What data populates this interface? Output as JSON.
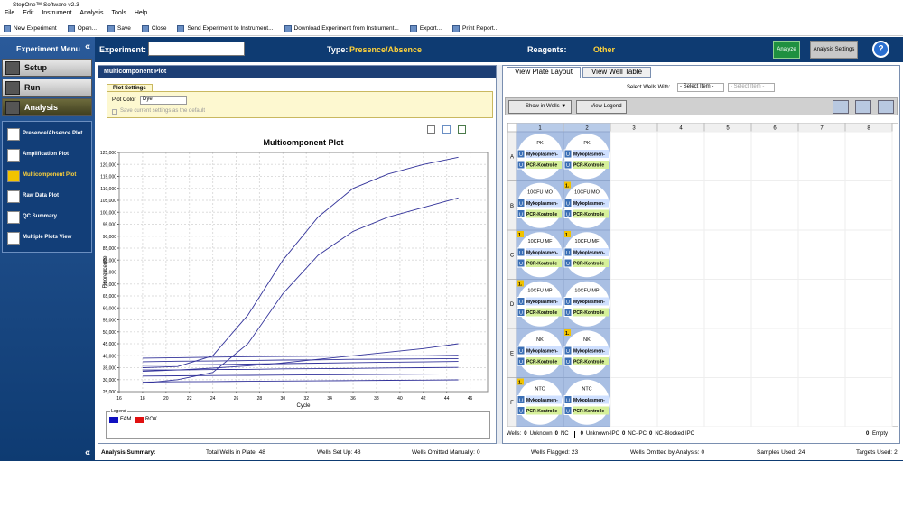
{
  "window": {
    "title": "StepOne™ Software v2.3"
  },
  "menu": [
    "File",
    "Edit",
    "Instrument",
    "Analysis",
    "Tools",
    "Help"
  ],
  "toolbar": [
    "New Experiment",
    "Open...",
    "Save",
    "Close",
    "Send Experiment to Instrument...",
    "Download Experiment from Instrument...",
    "Export...",
    "Print Report..."
  ],
  "header": {
    "experiment_label": "Experiment:",
    "type_label": "Type:",
    "type_value": "Presence/Absence",
    "reagents_label": "Reagents:",
    "reagents_value": "Other",
    "analyze": "Analyze",
    "analysis_settings": "Analysis Settings",
    "help": "?"
  },
  "sidebar": {
    "title": "Experiment Menu",
    "sections": [
      "Setup",
      "Run",
      "Analysis"
    ],
    "items": [
      "Presence/Absence Plot",
      "Amplification Plot",
      "Multicomponent Plot",
      "Raw Data Plot",
      "QC Summary",
      "Multiple Plots View"
    ],
    "active_item": 2
  },
  "plot_panel": {
    "title": "Multicomponent Plot",
    "settings_tab": "Plot Settings",
    "plot_color_label": "Plot Color",
    "plot_color_value": "Dye",
    "save_default": "Save current settings as the default",
    "legend_title": "Legend"
  },
  "chart_data": {
    "type": "line",
    "title": "Multicomponent Plot",
    "x_label": "Cycle",
    "y_label": "Fluorescence",
    "x": [
      18,
      21,
      24,
      27,
      30,
      33,
      36,
      39,
      42,
      45
    ],
    "series": [
      {
        "color": "#33339a",
        "values": [
          35000,
          35500,
          40000,
          57000,
          80000,
          98000,
          110000,
          116000,
          120000,
          123000
        ]
      },
      {
        "color": "#33339a",
        "values": [
          28500,
          30000,
          33000,
          45000,
          66000,
          82000,
          92000,
          98000,
          102000,
          106000
        ]
      },
      {
        "color": "#33339a",
        "values": [
          39000,
          39200,
          39400,
          39600,
          39700,
          39800,
          39900,
          40000,
          40000,
          40200
        ]
      },
      {
        "color": "#33339a",
        "values": [
          37500,
          37700,
          37800,
          38000,
          38200,
          38300,
          38500,
          38600,
          38700,
          38800
        ]
      },
      {
        "color": "#33339a",
        "values": [
          36000,
          36100,
          36300,
          36500,
          36700,
          36900,
          37100,
          37300,
          37400,
          37600
        ]
      },
      {
        "color": "#33339a",
        "values": [
          33500,
          34000,
          34800,
          35800,
          37000,
          38500,
          40000,
          41500,
          43000,
          45000
        ]
      },
      {
        "color": "#33339a",
        "values": [
          34000,
          34000,
          34200,
          34300,
          34500,
          34600,
          34700,
          34900,
          35000,
          35100
        ]
      },
      {
        "color": "#33339a",
        "values": [
          31500,
          31600,
          31700,
          31800,
          31900,
          32000,
          32100,
          32200,
          32300,
          32400
        ]
      },
      {
        "color": "#33339a",
        "values": [
          29000,
          29100,
          29200,
          29300,
          29400,
          29500,
          29600,
          29700,
          29800,
          29900
        ]
      }
    ],
    "xlim": [
      16,
      47.5
    ],
    "xticks": [
      16,
      18,
      20,
      22,
      24,
      26,
      28,
      30,
      32,
      34,
      36,
      38,
      40,
      42,
      44,
      46
    ],
    "ylim": [
      25000,
      125000
    ],
    "yticks": [
      {
        "value": 25000,
        "label": "25,000"
      },
      {
        "value": 30000,
        "label": "30,000"
      },
      {
        "value": 35000,
        "label": "35,000"
      },
      {
        "value": 40000,
        "label": "40,000"
      },
      {
        "value": 45000,
        "label": "45,000"
      },
      {
        "value": 50000,
        "label": "50,000"
      },
      {
        "value": 55000,
        "label": "55,000"
      },
      {
        "value": 60000,
        "label": "60,000"
      },
      {
        "value": 65000,
        "label": "65,000"
      },
      {
        "value": 70000,
        "label": "70,000"
      },
      {
        "value": 75000,
        "label": "75,000"
      },
      {
        "value": 80000,
        "label": "80,000"
      },
      {
        "value": 85000,
        "label": "85,000"
      },
      {
        "value": 90000,
        "label": "90,000"
      },
      {
        "value": 95000,
        "label": "95,000"
      },
      {
        "value": 100000,
        "label": "100,000"
      },
      {
        "value": 105000,
        "label": "105,000"
      },
      {
        "value": 110000,
        "label": "110,000"
      },
      {
        "value": 115000,
        "label": "115,000"
      },
      {
        "value": 120000,
        "label": "120,000"
      },
      {
        "value": 125000,
        "label": "125,000"
      }
    ],
    "grid": true,
    "legend_position": "bottom",
    "legend": [
      {
        "name": "FAM",
        "color": "#1010c0"
      },
      {
        "name": "ROX",
        "color": "#e01010"
      }
    ]
  },
  "plate_panel": {
    "tabs": [
      "View Plate Layout",
      "View Well Table"
    ],
    "select_label": "Select Wells With:",
    "select_items": [
      "- Select Item -",
      "- Select Item -"
    ],
    "show_in_wells": "Show in Wells ▼",
    "view_legend": "View Legend",
    "columns": [
      1,
      2,
      3,
      4,
      5,
      6,
      7,
      8
    ],
    "rows": [
      "A",
      "B",
      "C",
      "D",
      "E",
      "F"
    ],
    "task_icon": "U",
    "targets": [
      "Mykoplasmen-",
      "PCR-Kontrolle"
    ],
    "wells": [
      [
        {
          "sample": "PK"
        },
        {
          "sample": "PK"
        }
      ],
      [
        {
          "sample": "10CFU MO"
        },
        {
          "sample": "10CFU MO",
          "flag": "1."
        }
      ],
      [
        {
          "sample": "10CFU MF",
          "flag": "1."
        },
        {
          "sample": "10CFU MF",
          "flag": "1."
        }
      ],
      [
        {
          "sample": "10CFU MP",
          "flag": "1."
        },
        {
          "sample": "10CFU MP"
        }
      ],
      [
        {
          "sample": "NK"
        },
        {
          "sample": "NK",
          "flag": "1."
        }
      ],
      [
        {
          "sample": "NTC",
          "flag": "1."
        },
        {
          "sample": "NTC"
        }
      ]
    ],
    "footer": {
      "label": "Wells:",
      "counts": [
        {
          "count": 0,
          "label": "Unknown"
        },
        {
          "count": 0,
          "label": "NC"
        },
        {
          "count": 0,
          "label": "Unknown-IPC"
        },
        {
          "count": 0,
          "label": "NC-IPC"
        },
        {
          "count": 0,
          "label": "NC-Blocked IPC"
        }
      ],
      "empty": {
        "count": 0,
        "label": "Empty"
      }
    }
  },
  "status": {
    "title": "Analysis Summary:",
    "items": [
      {
        "label": "Total Wells in Plate:",
        "value": 48
      },
      {
        "label": "Wells Set Up:",
        "value": 48
      },
      {
        "label": "Wells Omitted Manually:",
        "value": 0
      },
      {
        "label": "Wells Flagged:",
        "value": 23
      },
      {
        "label": "Wells Omitted by Analysis:",
        "value": 0
      },
      {
        "label": "Samples Used:",
        "value": 24
      },
      {
        "label": "Targets Used:",
        "value": 2
      }
    ]
  }
}
